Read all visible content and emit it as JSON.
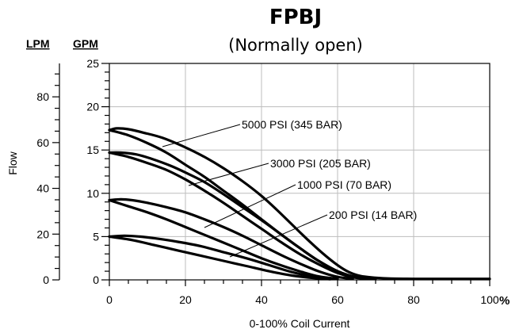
{
  "chart_data": {
    "type": "line",
    "title": "FPBJ",
    "subtitle": "(Normally open)",
    "xlabel": "0-100% Coil Current",
    "ylabel": "Flow",
    "x_unit_label": "%",
    "y_left_unit": "LPM",
    "y_right_unit": "GPM",
    "xlim": [
      0,
      100
    ],
    "ylim_gpm": [
      0,
      25
    ],
    "ylim_lpm": [
      0,
      94.6
    ],
    "x_ticks": [
      "0",
      "20",
      "40",
      "60",
      "80",
      "100"
    ],
    "gpm_ticks": [
      "0",
      "5",
      "10",
      "15",
      "20",
      "25"
    ],
    "lpm_ticks": [
      "0",
      "20",
      "40",
      "60",
      "80"
    ],
    "grid": true,
    "series": [
      {
        "name": "5000 PSI (345 BAR)",
        "upper": {
          "x": [
            0,
            2,
            5,
            9,
            14,
            20,
            25,
            30,
            35,
            40,
            44,
            48,
            52,
            56,
            60,
            63,
            66,
            70,
            74,
            80,
            90,
            100
          ],
          "y": [
            17.3,
            17.5,
            17.4,
            17.0,
            16.4,
            15.3,
            14.2,
            12.9,
            11.4,
            9.7,
            8.1,
            6.4,
            4.7,
            3.1,
            1.7,
            0.9,
            0.45,
            0.25,
            0.15,
            0.12,
            0.12,
            0.12
          ]
        },
        "lower": {
          "x": [
            0,
            5,
            10,
            15,
            20,
            25,
            30,
            35,
            40,
            45,
            50,
            55,
            60,
            65,
            70
          ],
          "y": [
            17.3,
            16.7,
            15.8,
            14.7,
            13.3,
            11.9,
            10.3,
            8.7,
            7.0,
            5.3,
            3.7,
            2.2,
            1.0,
            0.3,
            0.12
          ]
        }
      },
      {
        "name": "3000 PSI (205 BAR)",
        "upper": {
          "x": [
            0,
            3,
            7,
            11,
            16,
            20,
            25,
            30,
            35,
            40,
            45,
            50,
            55,
            60,
            64,
            68
          ],
          "y": [
            14.7,
            14.7,
            14.5,
            14.0,
            13.2,
            12.4,
            11.3,
            9.9,
            8.4,
            6.9,
            5.3,
            3.7,
            2.2,
            1.0,
            0.4,
            0.12
          ]
        },
        "lower": {
          "x": [
            0,
            5,
            10,
            15,
            20,
            25,
            30,
            35,
            40,
            45,
            50,
            55,
            60,
            64,
            68
          ],
          "y": [
            14.7,
            14.2,
            13.5,
            12.7,
            11.6,
            10.3,
            8.9,
            7.4,
            5.9,
            4.4,
            3.0,
            1.8,
            0.8,
            0.3,
            0.12
          ]
        }
      },
      {
        "name": "1000 PSI (70 BAR)",
        "upper": {
          "x": [
            0,
            3,
            6,
            10,
            15,
            20,
            25,
            30,
            35,
            40,
            45,
            50,
            55,
            60,
            64
          ],
          "y": [
            9.2,
            9.3,
            9.2,
            8.9,
            8.4,
            7.8,
            7.0,
            6.1,
            5.1,
            4.0,
            2.9,
            1.9,
            1.0,
            0.35,
            0.12
          ]
        },
        "lower": {
          "x": [
            0,
            5,
            10,
            15,
            20,
            25,
            30,
            35,
            40,
            45,
            50,
            55,
            60
          ],
          "y": [
            9.2,
            8.5,
            7.8,
            7.0,
            6.1,
            5.2,
            4.3,
            3.4,
            2.5,
            1.7,
            1.0,
            0.4,
            0.12
          ]
        }
      },
      {
        "name": "200 PSI (14 BAR)",
        "upper": {
          "x": [
            0,
            4,
            8,
            12,
            18,
            24,
            30,
            36,
            42,
            48,
            54,
            60
          ],
          "y": [
            5.0,
            5.1,
            5.0,
            4.8,
            4.4,
            3.9,
            3.2,
            2.5,
            1.7,
            0.9,
            0.35,
            0.12
          ]
        },
        "lower": {
          "x": [
            0,
            6,
            12,
            18,
            24,
            30,
            36,
            42,
            48,
            54,
            58
          ],
          "y": [
            5.0,
            4.6,
            4.0,
            3.4,
            2.8,
            2.2,
            1.6,
            1.0,
            0.5,
            0.2,
            0.08
          ]
        }
      }
    ],
    "annotations": [
      {
        "text": "5000 PSI (345 BAR)",
        "series": 0
      },
      {
        "text": "3000 PSI (205 BAR)",
        "series": 1
      },
      {
        "text": "1000 PSI (70 BAR)",
        "series": 2
      },
      {
        "text": "200 PSI (14 BAR)",
        "series": 3
      }
    ]
  }
}
